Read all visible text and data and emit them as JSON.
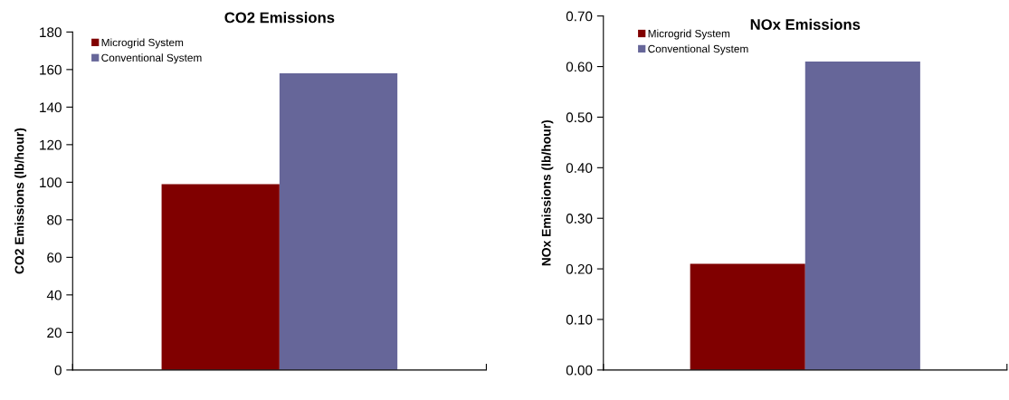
{
  "chart_data": [
    {
      "type": "bar",
      "title": "CO2 Emissions",
      "ylabel": "CO2 Emissions (lb/hour)",
      "categories": [
        null
      ],
      "series": [
        {
          "name": "Microgrid System",
          "color": "#800000",
          "values": [
            99
          ]
        },
        {
          "name": "Conventional System",
          "color": "#666699",
          "values": [
            158
          ]
        }
      ],
      "ylim": [
        0,
        180
      ],
      "yticks": [
        0,
        20,
        40,
        60,
        80,
        100,
        120,
        140,
        160,
        180
      ],
      "grid": false,
      "legend": "top left"
    },
    {
      "type": "bar",
      "title": "NOx Emissions",
      "ylabel": "NOx Emissions (lb/hour)",
      "categories": [
        null
      ],
      "series": [
        {
          "name": "Microgrid System",
          "color": "#800000",
          "values": [
            0.21
          ]
        },
        {
          "name": "Conventional System",
          "color": "#666699",
          "values": [
            0.61
          ]
        }
      ],
      "ylim": [
        0,
        0.7
      ],
      "yticks": [
        {
          "value": 0,
          "label": "0.00"
        },
        {
          "value": 0.1,
          "label": "0.10"
        },
        {
          "value": 0.2,
          "label": "0.20"
        },
        {
          "value": 0.3,
          "label": "0.30"
        },
        {
          "value": 0.4,
          "label": "0.40"
        },
        {
          "value": 0.5,
          "label": "0.50"
        },
        {
          "value": 0.6,
          "label": "0.60"
        },
        {
          "value": 0.7,
          "label": "0.70"
        }
      ],
      "grid": false,
      "legend": "top left"
    }
  ]
}
